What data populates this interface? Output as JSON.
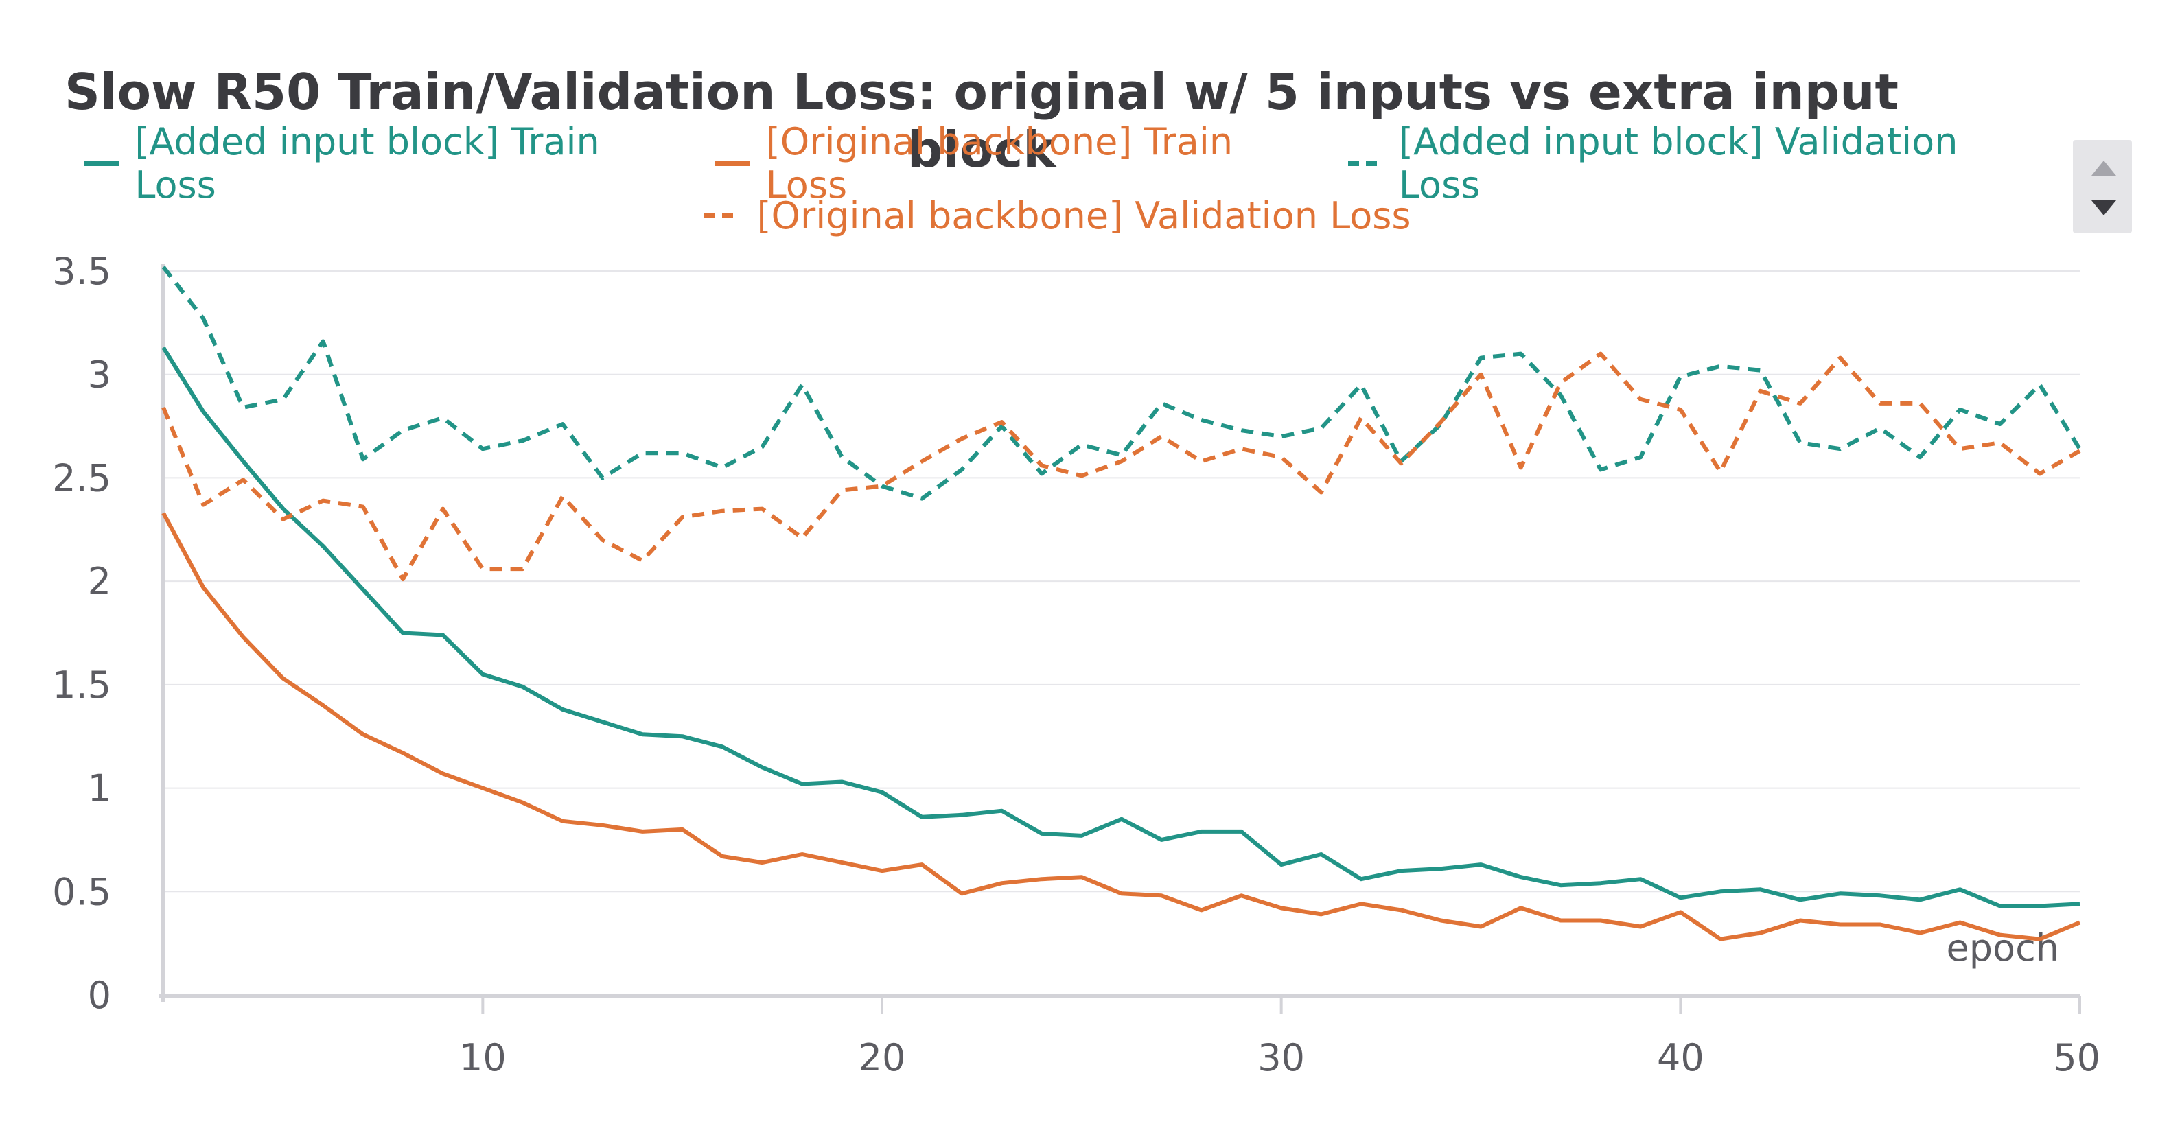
{
  "chart_data": {
    "type": "line",
    "title": "Slow R50 Train/Validation Loss: original w/ 5 inputs vs extra input block",
    "xlabel": "epoch",
    "ylabel": "",
    "xlim": [
      2,
      50
    ],
    "ylim": [
      0,
      3.5
    ],
    "xticks": [
      10,
      20,
      30,
      40,
      50
    ],
    "xtick_labels": [
      "10",
      "20",
      "30",
      "40",
      "50"
    ],
    "yticks": [
      0,
      0.5,
      1,
      1.5,
      2,
      2.5,
      3,
      3.5
    ],
    "ytick_labels": [
      "0",
      "0.5",
      "1",
      "1.5",
      "2",
      "2.5",
      "3",
      "3.5"
    ],
    "grid": true,
    "legend_position": "top",
    "x": [
      2,
      3,
      4,
      5,
      6,
      7,
      8,
      9,
      10,
      11,
      12,
      13,
      14,
      15,
      16,
      17,
      18,
      19,
      20,
      21,
      22,
      23,
      24,
      25,
      26,
      27,
      28,
      29,
      30,
      31,
      32,
      33,
      34,
      35,
      36,
      37,
      38,
      39,
      40,
      41,
      42,
      43,
      44,
      45,
      46,
      47,
      48,
      49,
      50
    ],
    "series": [
      {
        "name": "[Added input block] Train Loss",
        "color": "#229487",
        "style": "solid",
        "values": [
          3.13,
          2.82,
          2.58,
          2.35,
          2.17,
          1.96,
          1.75,
          1.74,
          1.55,
          1.49,
          1.38,
          1.32,
          1.26,
          1.25,
          1.2,
          1.1,
          1.02,
          1.03,
          0.98,
          0.86,
          0.87,
          0.89,
          0.78,
          0.77,
          0.85,
          0.75,
          0.79,
          0.79,
          0.63,
          0.68,
          0.56,
          0.6,
          0.61,
          0.63,
          0.57,
          0.53,
          0.54,
          0.56,
          0.47,
          0.5,
          0.51,
          0.46,
          0.49,
          0.48,
          0.46,
          0.51,
          0.43,
          0.43,
          0.44
        ]
      },
      {
        "name": "[Original backbone] Train Loss",
        "color": "#e07336",
        "style": "solid",
        "values": [
          2.33,
          1.97,
          1.73,
          1.53,
          1.4,
          1.26,
          1.17,
          1.07,
          1.0,
          0.93,
          0.84,
          0.82,
          0.79,
          0.8,
          0.67,
          0.64,
          0.68,
          0.64,
          0.6,
          0.63,
          0.49,
          0.54,
          0.56,
          0.57,
          0.49,
          0.48,
          0.41,
          0.48,
          0.42,
          0.39,
          0.44,
          0.41,
          0.36,
          0.33,
          0.42,
          0.36,
          0.36,
          0.33,
          0.4,
          0.27,
          0.3,
          0.36,
          0.34,
          0.34,
          0.3,
          0.35,
          0.29,
          0.27,
          0.35
        ]
      },
      {
        "name": "[Added input block] Validation Loss",
        "color": "#229487",
        "style": "dashed",
        "values": [
          3.52,
          3.27,
          2.84,
          2.88,
          3.16,
          2.59,
          2.73,
          2.79,
          2.64,
          2.68,
          2.76,
          2.5,
          2.62,
          2.62,
          2.55,
          2.65,
          2.95,
          2.6,
          2.46,
          2.4,
          2.54,
          2.75,
          2.52,
          2.66,
          2.61,
          2.86,
          2.78,
          2.73,
          2.7,
          2.74,
          2.95,
          2.58,
          2.76,
          3.08,
          3.1,
          2.9,
          2.54,
          2.6,
          2.99,
          3.04,
          3.02,
          2.67,
          2.64,
          2.74,
          2.6,
          2.83,
          2.76,
          2.95,
          2.64
        ]
      },
      {
        "name": "[Original backbone] Validation Loss",
        "color": "#e07336",
        "style": "dashed",
        "values": [
          2.84,
          2.37,
          2.49,
          2.3,
          2.39,
          2.36,
          2.01,
          2.35,
          2.06,
          2.06,
          2.41,
          2.2,
          2.1,
          2.31,
          2.34,
          2.35,
          2.21,
          2.44,
          2.46,
          2.58,
          2.69,
          2.77,
          2.56,
          2.51,
          2.58,
          2.7,
          2.58,
          2.64,
          2.6,
          2.43,
          2.79,
          2.57,
          2.77,
          3.0,
          2.55,
          2.96,
          3.1,
          2.88,
          2.83,
          2.53,
          2.92,
          2.86,
          3.08,
          2.86,
          2.86,
          2.64,
          2.67,
          2.52,
          2.63
        ]
      }
    ]
  }
}
